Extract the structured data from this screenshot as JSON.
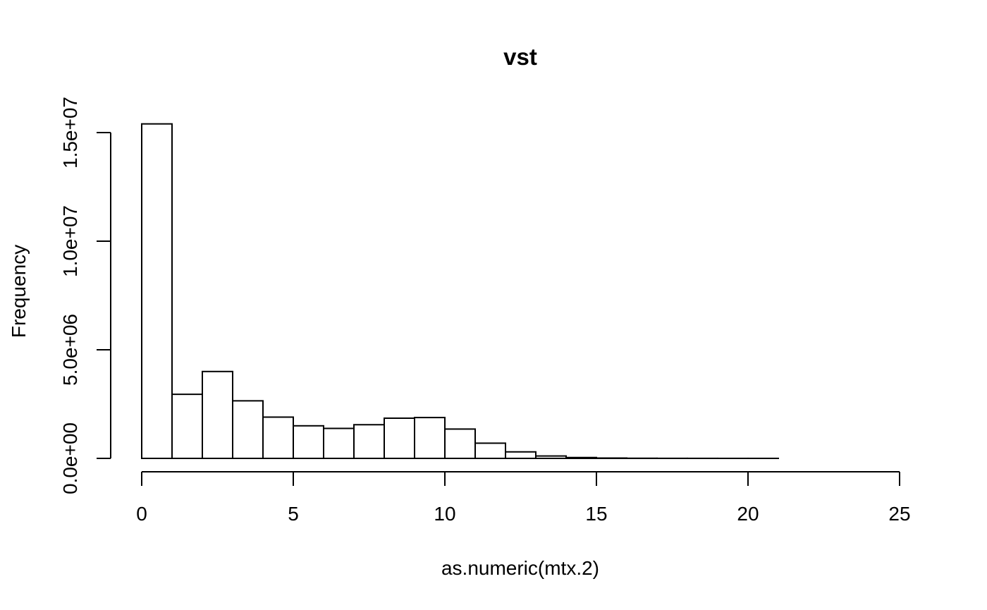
{
  "chart_data": {
    "type": "bar",
    "title": "vst",
    "xlabel": "as.numeric(mtx.2)",
    "ylabel": "Frequency",
    "bin_edges": [
      0,
      1,
      2,
      3,
      4,
      5,
      6,
      7,
      8,
      9,
      10,
      11,
      12,
      13,
      14,
      15,
      16,
      17,
      18,
      19,
      20,
      21,
      22,
      23,
      24,
      25
    ],
    "values": [
      15400000,
      2950000,
      4000000,
      2650000,
      1900000,
      1500000,
      1380000,
      1550000,
      1850000,
      1880000,
      1350000,
      700000,
      300000,
      110000,
      40000,
      15000,
      6000,
      3000,
      2000,
      1000,
      1000,
      0,
      0,
      0,
      0
    ],
    "xlim": [
      0,
      25
    ],
    "ylim": [
      0,
      15000000
    ],
    "x_ticks": [
      0,
      5,
      10,
      15,
      20,
      25
    ],
    "x_tick_labels": [
      "0",
      "5",
      "10",
      "15",
      "20",
      "25"
    ],
    "y_ticks": [
      0,
      5000000,
      10000000,
      15000000
    ],
    "y_tick_labels": [
      "0.0e+00",
      "5.0e+06",
      "1.0e+07",
      "1.5e+07"
    ],
    "grid": false,
    "colors": {
      "bar_fill": "#ffffff",
      "bar_stroke": "#000000"
    }
  }
}
